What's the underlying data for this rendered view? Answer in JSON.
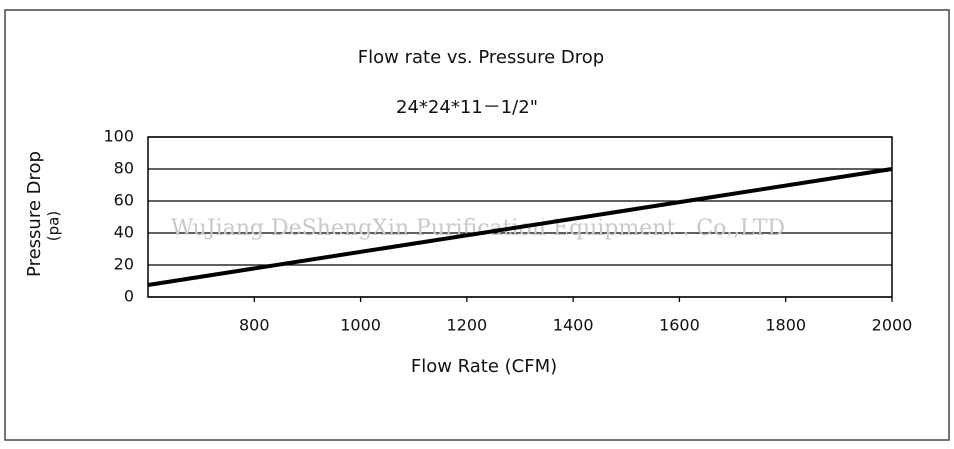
{
  "chart_data": {
    "type": "line",
    "title": "Flow rate vs. Pressure Drop",
    "subtitle": "24*24*11－1/2\"",
    "x_label": "Flow Rate (CFM)",
    "y_label": "Pressure Drop",
    "y_unit": "(pa)",
    "watermark": "WuJiang DeShengXin Purification Equipment . Co.,LTD",
    "x": [
      600,
      2000
    ],
    "values": [
      7.5,
      80
    ],
    "color": "#000000",
    "xlim": [
      600,
      2000
    ],
    "xticks": [
      800,
      1000,
      1200,
      1400,
      1600,
      1800,
      2000
    ],
    "ylim": [
      0,
      100
    ],
    "yticks": [
      0,
      20,
      40,
      60,
      80,
      100
    ],
    "grid": true
  }
}
